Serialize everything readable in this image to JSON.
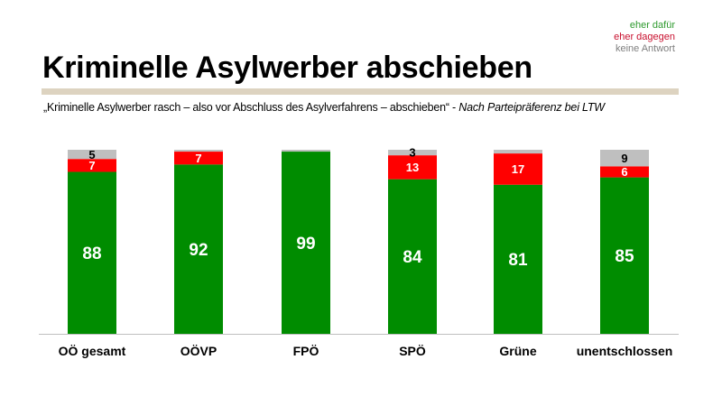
{
  "legend": {
    "items": [
      {
        "label": "eher dafür",
        "color": "#2E9A2E"
      },
      {
        "label": "eher dagegen",
        "color": "#C8102E"
      },
      {
        "label": "keine Antwort",
        "color": "#7F7F7F"
      }
    ]
  },
  "header": {
    "title": "Kriminelle Asylwerber abschieben",
    "subtitle_main": "„Kriminelle Asylwerber  rasch – also vor Abschluss  des Asylverfahrens  – abschieben“ - ",
    "subtitle_italic": "Nach Parteipräferenz bei LTW"
  },
  "chart_data": {
    "type": "bar",
    "stacked": true,
    "title": "Kriminelle Asylwerber abschieben",
    "xlabel": "",
    "ylabel": "",
    "ylim": [
      0,
      100
    ],
    "grid": false,
    "legend_position": "top-right",
    "categories": [
      "OÖ gesamt",
      "OÖVP",
      "FPÖ",
      "SPÖ",
      "Grüne",
      "unentschlossen"
    ],
    "series": [
      {
        "name": "eher dafür",
        "color": "#008C00",
        "label_color": "#FFFFFF",
        "values": [
          88,
          92,
          99,
          84,
          81,
          85
        ],
        "labels": [
          "88",
          "92",
          "99",
          "84",
          "81",
          "85"
        ]
      },
      {
        "name": "eher dagegen",
        "color": "#FF0000",
        "label_color": "#FFFFFF",
        "values": [
          7,
          7,
          0,
          13,
          17,
          6
        ],
        "labels": [
          "7",
          "7",
          "",
          "13",
          "17",
          "6"
        ]
      },
      {
        "name": "keine Antwort",
        "color": "#BFBFBF",
        "label_color": "#000000",
        "values": [
          5,
          1,
          1,
          3,
          2,
          9
        ],
        "labels": [
          "5",
          "",
          "",
          "3",
          "",
          "9"
        ]
      }
    ]
  }
}
